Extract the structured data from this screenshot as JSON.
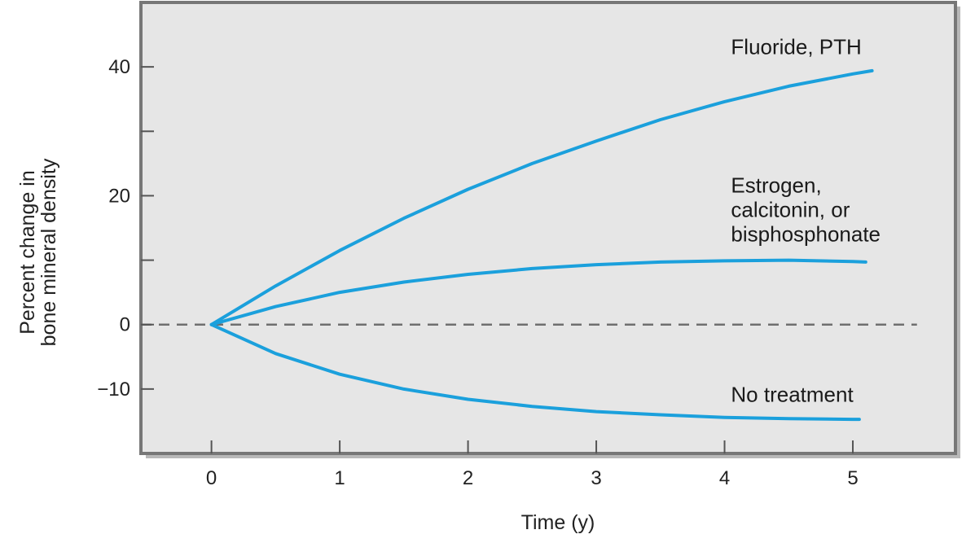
{
  "chart_data": {
    "type": "line",
    "title": "",
    "xlabel": "Time (y)",
    "ylabel_lines": [
      "Percent change in",
      "bone mineral density"
    ],
    "xlim": [
      -0.55,
      5.8
    ],
    "ylim": [
      -20,
      50
    ],
    "x_ticks": [
      0,
      1,
      2,
      3,
      4,
      5
    ],
    "x_tick_labels": [
      "0",
      "1",
      "2",
      "3",
      "4",
      "5"
    ],
    "y_ticks": [
      -10,
      0,
      10,
      20,
      30,
      40
    ],
    "y_tick_labels": [
      {
        "value": -10,
        "label": "−10"
      },
      {
        "value": 0,
        "label": "0"
      },
      {
        "value": 20,
        "label": "20"
      },
      {
        "value": 40,
        "label": "40"
      }
    ],
    "grid": false,
    "baseline": {
      "y": 0,
      "style": "dashed",
      "x_range": [
        -0.55,
        5.5
      ]
    },
    "plot_background": "#e6e6e6",
    "frame_color": "#777777",
    "series_color": "#1ba0dc",
    "series": [
      {
        "x": [
          0,
          0.5,
          1,
          1.5,
          2,
          2.5,
          3,
          3.5,
          4,
          4.5,
          5,
          5.15
        ],
        "y": [
          0,
          6,
          11.5,
          16.5,
          21,
          25,
          28.5,
          31.8,
          34.6,
          37,
          38.9,
          39.4
        ]
      },
      {
        "x": [
          0,
          0.5,
          1,
          1.5,
          2,
          2.5,
          3,
          3.5,
          4,
          4.5,
          5,
          5.1
        ],
        "y": [
          0,
          2.8,
          5,
          6.6,
          7.8,
          8.7,
          9.3,
          9.7,
          9.9,
          10,
          9.8,
          9.7
        ]
      },
      {
        "x": [
          0,
          0.5,
          1,
          1.5,
          2,
          2.5,
          3,
          3.5,
          4,
          4.5,
          5,
          5.05
        ],
        "y": [
          0,
          -4.5,
          -7.7,
          -10,
          -11.6,
          -12.7,
          -13.5,
          -14,
          -14.4,
          -14.6,
          -14.7,
          -14.7
        ]
      }
    ],
    "annotations": [
      {
        "lines": [
          "Fluoride, PTH"
        ],
        "x": 4.05,
        "y": 42
      },
      {
        "lines": [
          "Estrogen,",
          "calcitonin, or",
          "bisphosphonate"
        ],
        "x": 4.05,
        "y": 20.5
      },
      {
        "lines": [
          "No treatment"
        ],
        "x": 4.05,
        "y": -12
      }
    ]
  }
}
